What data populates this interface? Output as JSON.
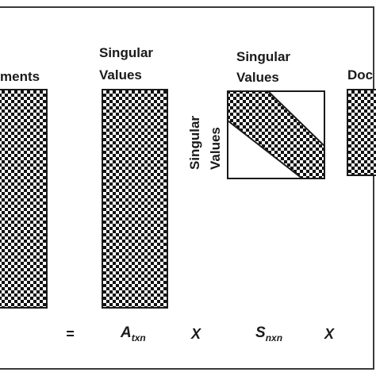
{
  "labels": {
    "documents_partial": "ments",
    "singular_values_a_line1": "Singular",
    "singular_values_a_line2": "Values",
    "singular_values_b_line1": "Singular",
    "singular_values_b_line2": "Values",
    "singular_values_side_line1": "Singular",
    "singular_values_side_line2": "Values",
    "doc_partial": "Doc"
  },
  "equation": {
    "equals": "=",
    "a_main": "A",
    "a_sub": "txn",
    "times1": "X",
    "s_main": "S",
    "s_sub": "nxn",
    "times2": "X"
  },
  "colors": {
    "ink": "#111111",
    "background": "#ffffff"
  }
}
